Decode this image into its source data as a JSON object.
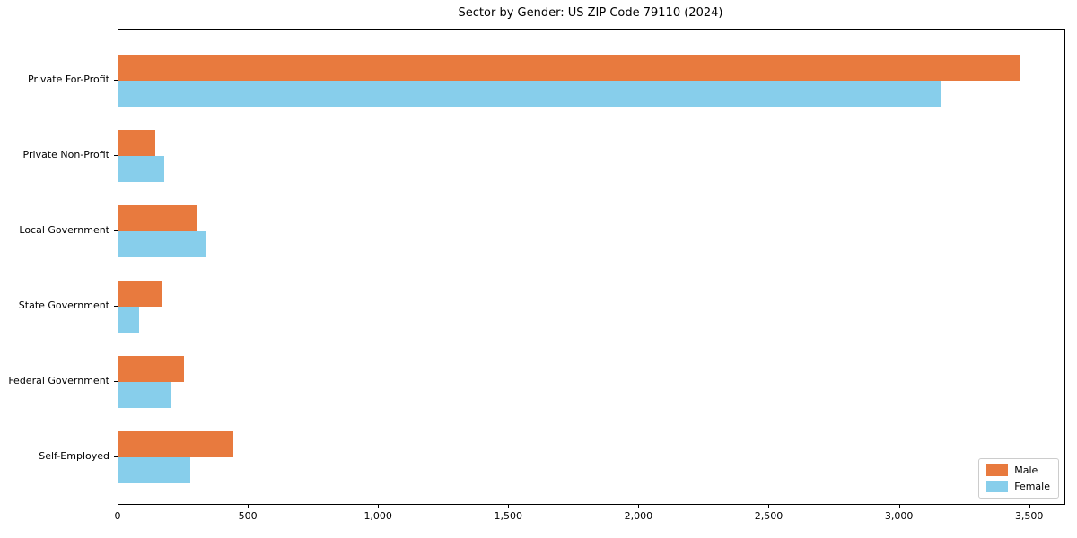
{
  "chart_data": {
    "type": "bar",
    "orientation": "horizontal",
    "title": "Sector by Gender: US ZIP Code 79110 (2024)",
    "categories": [
      "Private For-Profit",
      "Private Non-Profit",
      "Local Government",
      "State Government",
      "Federal Government",
      "Self-Employed"
    ],
    "series": [
      {
        "name": "Male",
        "color": "#e87a3e",
        "values": [
          3460,
          140,
          300,
          165,
          250,
          440
        ]
      },
      {
        "name": "Female",
        "color": "#87ceeb",
        "values": [
          3160,
          175,
          335,
          80,
          200,
          275
        ]
      }
    ],
    "xlabel": "",
    "ylabel": "",
    "xlim": [
      0,
      3632
    ],
    "xticks": [
      0,
      500,
      1000,
      1500,
      2000,
      2500,
      3000,
      3500
    ],
    "xtick_labels": [
      "0",
      "500",
      "1,000",
      "1,500",
      "2,000",
      "2,500",
      "3,000",
      "3,500"
    ],
    "grid": false,
    "legend_position": "lower right",
    "axis_color": "#000000",
    "text_color": "#000000",
    "background_color": "#ffffff"
  }
}
